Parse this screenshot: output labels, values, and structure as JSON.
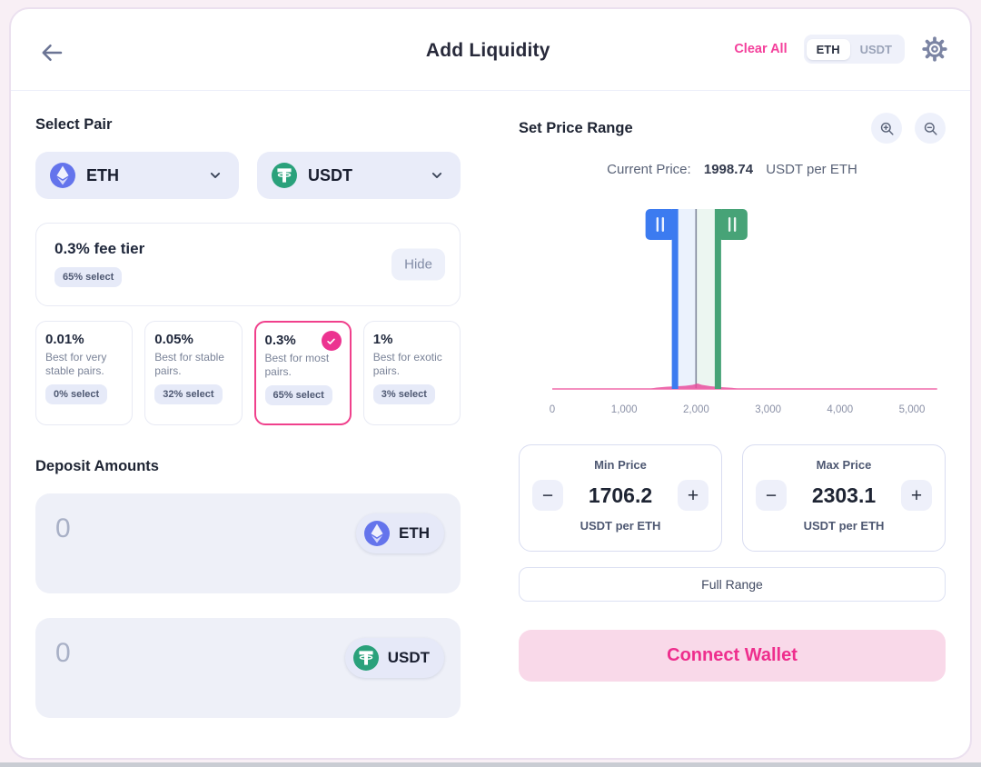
{
  "header": {
    "title": "Add Liquidity",
    "clear_all_label": "Clear All",
    "toggle": {
      "options": [
        "ETH",
        "USDT"
      ],
      "selected": "ETH"
    }
  },
  "select_pair": {
    "title": "Select Pair",
    "token_a": {
      "symbol": "ETH"
    },
    "token_b": {
      "symbol": "USDT"
    },
    "fee_summary": {
      "title": "0.3% fee tier",
      "badge": "65% select",
      "hide_label": "Hide"
    },
    "fee_tiers": [
      {
        "rate": "0.01%",
        "description": "Best for very stable pairs.",
        "badge": "0% select",
        "selected": false
      },
      {
        "rate": "0.05%",
        "description": "Best for stable pairs.",
        "badge": "32% select",
        "selected": false
      },
      {
        "rate": "0.3%",
        "description": "Best for most pairs.",
        "badge": "65% select",
        "selected": true
      },
      {
        "rate": "1%",
        "description": "Best for exotic pairs.",
        "badge": "3% select",
        "selected": false
      }
    ]
  },
  "deposit": {
    "title": "Deposit Amounts",
    "inputs": [
      {
        "value": "0",
        "token": "ETH"
      },
      {
        "value": "0",
        "token": "USDT"
      }
    ]
  },
  "price_range": {
    "title": "Set Price Range",
    "current_price_label": "Current Price:",
    "current_price_value": "1998.74",
    "current_price_unit": "USDT per ETH",
    "min": {
      "label": "Min Price",
      "value": "1706.2",
      "unit": "USDT per ETH"
    },
    "max": {
      "label": "Max Price",
      "value": "2303.1",
      "unit": "USDT per ETH"
    },
    "full_range_label": "Full Range",
    "connect_wallet_label": "Connect Wallet"
  },
  "chart_data": {
    "type": "area",
    "title": "Liquidity distribution range selector",
    "xlim": [
      0,
      5350
    ],
    "x_ticks": [
      {
        "label": "0",
        "value": 0
      },
      {
        "label": "1,000",
        "value": 1000
      },
      {
        "label": "2,000",
        "value": 2000
      },
      {
        "label": "3,000",
        "value": 3000
      },
      {
        "label": "4,000",
        "value": 4000
      },
      {
        "label": "5,000",
        "value": 5000
      }
    ],
    "current_price": 1998.74,
    "min_price": 1706.2,
    "max_price": 2303.1,
    "liquidity_profile": [
      {
        "price": 1450,
        "height": 1.5
      },
      {
        "price": 1600,
        "height": 2.5
      },
      {
        "price": 1750,
        "height": 3
      },
      {
        "price": 1850,
        "height": 3.5
      },
      {
        "price": 1950,
        "height": 4.5
      },
      {
        "price": 2020,
        "height": 6
      },
      {
        "price": 2080,
        "height": 4.5
      },
      {
        "price": 2200,
        "height": 3
      },
      {
        "price": 2350,
        "height": 2
      },
      {
        "price": 2500,
        "height": 1.2
      }
    ]
  },
  "colors": {
    "accent_pink": "#EE3B92",
    "connect_wallet_bg": "#F9D9E9",
    "handle_blue": "#3C7BF0",
    "handle_green": "#47A377",
    "shade_blue": "rgba(60,123,240,0.10)",
    "shade_green": "rgba(71,163,119,0.10)",
    "current_price_line": "#80879A",
    "liquidity_line": "#F06BAC",
    "liquidity_fill": "#E94F9E",
    "axis_text": "#8A90A6",
    "eth_icon_bg": "#6474EC",
    "usdt_icon_bg": "#2AA17B"
  }
}
